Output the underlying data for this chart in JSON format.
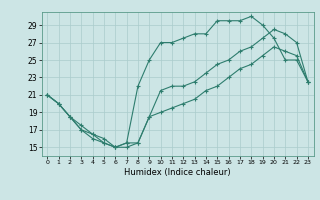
{
  "title": "",
  "xlabel": "Humidex (Indice chaleur)",
  "bg_color": "#cce5e5",
  "grid_color": "#aacccc",
  "line_color": "#2e7d6e",
  "xlim": [
    -0.5,
    23.5
  ],
  "ylim": [
    14.0,
    30.5
  ],
  "xticks": [
    0,
    1,
    2,
    3,
    4,
    5,
    6,
    7,
    8,
    9,
    10,
    11,
    12,
    13,
    14,
    15,
    16,
    17,
    18,
    19,
    20,
    21,
    22,
    23
  ],
  "yticks": [
    15,
    17,
    19,
    21,
    23,
    25,
    27,
    29
  ],
  "line1_x": [
    0,
    1,
    2,
    3,
    4,
    5,
    6,
    7,
    8,
    9,
    10,
    11,
    12,
    13,
    14,
    15,
    16,
    17,
    18,
    19,
    20,
    21,
    22,
    23
  ],
  "line1_y": [
    21,
    20,
    18.5,
    17,
    16,
    15.5,
    15,
    15,
    15.5,
    18.5,
    21.5,
    22,
    22,
    22.5,
    23.5,
    24.5,
    25,
    26,
    26.5,
    27.5,
    28.5,
    28,
    27,
    22.5
  ],
  "line2_x": [
    0,
    1,
    2,
    3,
    4,
    5,
    6,
    7,
    8,
    9,
    10,
    11,
    12,
    13,
    14,
    15,
    16,
    17,
    18,
    19,
    20,
    21,
    22,
    23
  ],
  "line2_y": [
    21,
    20,
    18.5,
    17.5,
    16.5,
    16,
    15,
    15.5,
    22,
    25,
    27,
    27,
    27.5,
    28,
    28,
    29.5,
    29.5,
    29.5,
    30,
    29,
    27.5,
    25,
    25,
    22.5
  ],
  "line3_x": [
    0,
    1,
    2,
    3,
    4,
    5,
    6,
    7,
    8,
    9,
    10,
    11,
    12,
    13,
    14,
    15,
    16,
    17,
    18,
    19,
    20,
    21,
    22,
    23
  ],
  "line3_y": [
    21,
    20,
    18.5,
    17,
    16.5,
    15.5,
    15,
    15.5,
    15.5,
    18.5,
    19,
    19.5,
    20,
    20.5,
    21.5,
    22,
    23,
    24,
    24.5,
    25.5,
    26.5,
    26,
    25.5,
    22.5
  ]
}
